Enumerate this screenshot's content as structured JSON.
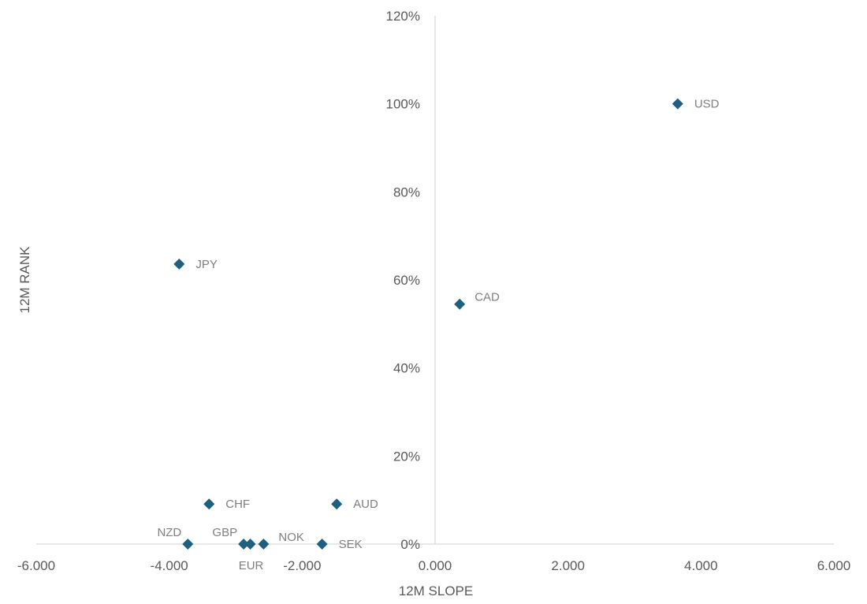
{
  "chart_data": {
    "type": "scatter",
    "title": "",
    "xlabel": "12M SLOPE",
    "ylabel": "12M RANK",
    "xlim": [
      -6.0,
      6.0
    ],
    "ylim": [
      0,
      120
    ],
    "x_ticks": [
      -6.0,
      -4.0,
      -2.0,
      0.0,
      2.0,
      4.0,
      6.0
    ],
    "x_tick_labels": [
      "-6.000",
      "-4.000",
      "-2.000",
      "0.000",
      "2.000",
      "4.000",
      "6.000"
    ],
    "y_ticks": [
      0,
      20,
      40,
      60,
      80,
      100,
      120
    ],
    "y_tick_labels": [
      "0%",
      "20%",
      "40%",
      "60%",
      "80%",
      "100%",
      "120%"
    ],
    "grid": false,
    "legend": "none",
    "marker": "diamond",
    "marker_color": "#1f5f7f",
    "points": [
      {
        "label": "USD",
        "x": 3.65,
        "y": 100,
        "label_pos": "right"
      },
      {
        "label": "JPY",
        "x": -3.85,
        "y": 63.6,
        "label_pos": "right"
      },
      {
        "label": "CAD",
        "x": 0.37,
        "y": 54.5,
        "label_pos": "upper-right"
      },
      {
        "label": "CHF",
        "x": -3.4,
        "y": 9.1,
        "label_pos": "right"
      },
      {
        "label": "AUD",
        "x": -1.48,
        "y": 9.1,
        "label_pos": "right"
      },
      {
        "label": "NZD",
        "x": -3.72,
        "y": 0,
        "label_pos": "upper-left"
      },
      {
        "label": "GBP",
        "x": -2.88,
        "y": 0,
        "label_pos": "upper-left"
      },
      {
        "label": "EUR",
        "x": -2.78,
        "y": 0,
        "label_pos": "below"
      },
      {
        "label": "NOK",
        "x": -2.58,
        "y": 0,
        "label_pos": "upper-right"
      },
      {
        "label": "SEK",
        "x": -1.7,
        "y": 0,
        "label_pos": "right"
      }
    ]
  }
}
